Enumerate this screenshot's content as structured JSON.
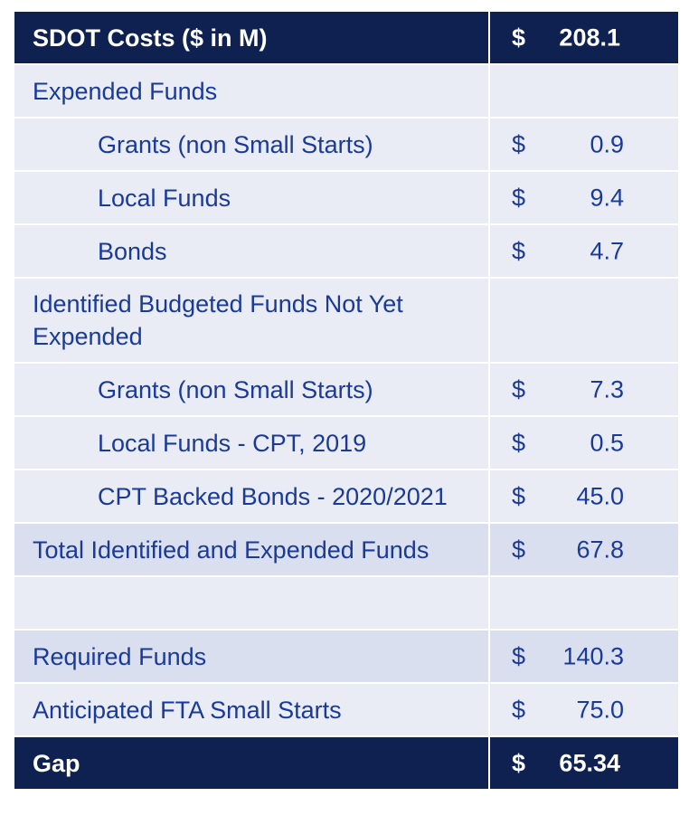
{
  "header": {
    "label": "SDOT Costs ($ in M)",
    "currency": "$",
    "amount": "208.1"
  },
  "rows": [
    {
      "label": "Expended Funds",
      "currency": "",
      "amount": ""
    },
    {
      "label": "Grants (non Small Starts)",
      "currency": "$",
      "amount": "0.9"
    },
    {
      "label": "Local Funds",
      "currency": "$",
      "amount": "9.4"
    },
    {
      "label": "Bonds",
      "currency": "$",
      "amount": "4.7"
    },
    {
      "label": "Identified Budgeted Funds Not Yet Expended",
      "currency": "",
      "amount": ""
    },
    {
      "label": "Grants (non Small Starts)",
      "currency": "$",
      "amount": "7.3"
    },
    {
      "label": "Local Funds - CPT, 2019",
      "currency": "$",
      "amount": "0.5"
    },
    {
      "label": "CPT Backed Bonds - 2020/2021",
      "currency": "$",
      "amount": "45.0"
    },
    {
      "label": "Total Identified and Expended Funds",
      "currency": "$",
      "amount": "67.8"
    },
    {
      "label": "",
      "currency": "",
      "amount": ""
    },
    {
      "label": "Required Funds",
      "currency": "$",
      "amount": "140.3"
    },
    {
      "label": "Anticipated FTA Small Starts",
      "currency": "$",
      "amount": "75.0"
    }
  ],
  "footer": {
    "label": "Gap",
    "currency": "$",
    "amount": "65.34"
  },
  "colors": {
    "header_bg": "#0e2150",
    "row_light": "#e9ecf4",
    "row_medium": "#d9dfef",
    "text_blue": "#1a3a9a"
  }
}
